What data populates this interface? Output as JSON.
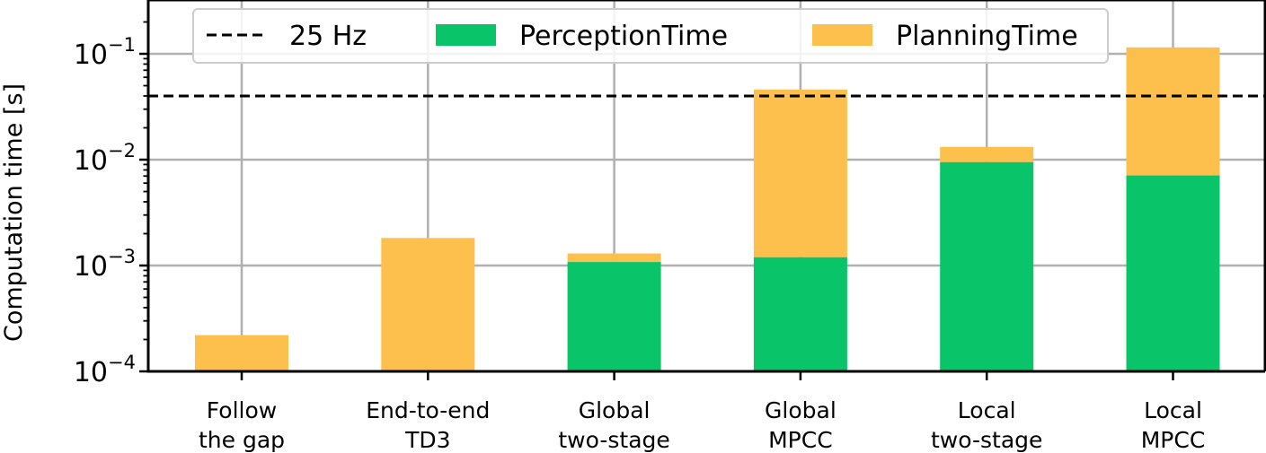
{
  "chart_data": {
    "type": "bar",
    "stacked": true,
    "yscale": "log",
    "ylabel": "Computation time [s]",
    "ylim": [
      0.0001,
      0.3
    ],
    "yticks": [
      {
        "value": 0.0001,
        "base": "10",
        "exp": "−4"
      },
      {
        "value": 0.001,
        "base": "10",
        "exp": "−3"
      },
      {
        "value": 0.01,
        "base": "10",
        "exp": "−2"
      },
      {
        "value": 0.1,
        "base": "10",
        "exp": "−1"
      }
    ],
    "grid": true,
    "legend_position": "top",
    "categories": [
      [
        "Follow",
        "the gap"
      ],
      [
        "End-to-end",
        "TD3"
      ],
      [
        "Global",
        "two-stage"
      ],
      [
        "Global",
        "MPCC"
      ],
      [
        "Local",
        "two-stage"
      ],
      [
        "Local",
        "MPCC"
      ]
    ],
    "series": [
      {
        "name": "PerceptionTime",
        "color": "#0ac46a",
        "values": [
          0,
          0,
          0.00108,
          0.0012,
          0.0095,
          0.0071
        ]
      },
      {
        "name": "PlanningTime",
        "color": "#fdc04c",
        "values": [
          0.00022,
          0.00182,
          0.00022,
          0.0448,
          0.0037,
          0.1079
        ]
      }
    ],
    "reference_line": {
      "name": "25 Hz",
      "value": 0.04,
      "style": "dashed",
      "color": "#000000"
    }
  }
}
